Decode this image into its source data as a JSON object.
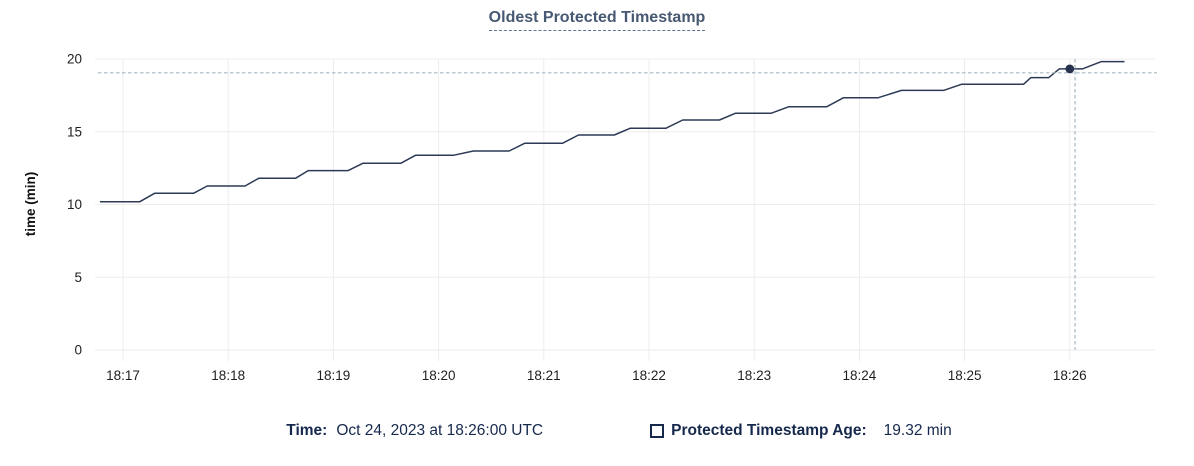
{
  "title": "Oldest Protected Timestamp",
  "legend": {
    "time_label": "Time:",
    "time_value": "Oct 24, 2023 at 18:26:00 UTC",
    "series_label": "Protected Timestamp Age:",
    "series_value": "19.32 min",
    "series_checkbox_checked": false
  },
  "chart_data": {
    "type": "line",
    "title": "Oldest Protected Timestamp",
    "xlabel": "",
    "ylabel": "time (min)",
    "x_ticks": [
      "18:17",
      "18:18",
      "18:19",
      "18:20",
      "18:21",
      "18:22",
      "18:23",
      "18:24",
      "18:25",
      "18:26"
    ],
    "x_unit": "minutes after 18:17",
    "y_ticks": [
      0,
      5,
      10,
      15,
      20
    ],
    "ylim": [
      0,
      20
    ],
    "grid": true,
    "legend_position": "bottom",
    "series": [
      {
        "name": "Protected Timestamp Age",
        "unit": "min",
        "points": [
          [
            -0.22,
            10.19
          ],
          [
            0.16,
            10.19
          ],
          [
            0.3,
            10.77
          ],
          [
            0.67,
            10.77
          ],
          [
            0.8,
            11.27
          ],
          [
            1.16,
            11.27
          ],
          [
            1.29,
            11.8
          ],
          [
            1.64,
            11.8
          ],
          [
            1.76,
            12.33
          ],
          [
            2.14,
            12.33
          ],
          [
            2.28,
            12.83
          ],
          [
            2.64,
            12.83
          ],
          [
            2.78,
            13.38
          ],
          [
            3.14,
            13.38
          ],
          [
            3.33,
            13.68
          ],
          [
            3.67,
            13.68
          ],
          [
            3.82,
            14.21
          ],
          [
            4.18,
            14.21
          ],
          [
            4.33,
            14.78
          ],
          [
            4.67,
            14.78
          ],
          [
            4.82,
            15.24
          ],
          [
            5.16,
            15.24
          ],
          [
            5.32,
            15.81
          ],
          [
            5.67,
            15.81
          ],
          [
            5.82,
            16.27
          ],
          [
            6.16,
            16.27
          ],
          [
            6.33,
            16.72
          ],
          [
            6.69,
            16.72
          ],
          [
            6.85,
            17.34
          ],
          [
            7.18,
            17.34
          ],
          [
            7.4,
            17.84
          ],
          [
            7.8,
            17.84
          ],
          [
            7.97,
            18.26
          ],
          [
            8.56,
            18.26
          ],
          [
            8.63,
            18.72
          ],
          [
            8.8,
            18.72
          ],
          [
            8.9,
            19.32
          ],
          [
            9.12,
            19.32
          ],
          [
            9.3,
            19.82
          ],
          [
            9.52,
            19.82
          ]
        ]
      }
    ],
    "hover": {
      "time": "Oct 24, 2023 at 18:26:00 UTC",
      "value": 19.32,
      "point": [
        9.0,
        19.32
      ],
      "crosshair": [
        9.05,
        19.05
      ]
    },
    "colors": {
      "line": "#2d3a56",
      "dot": "#26324e",
      "grid": "#ededed",
      "crosshair": "#a6b8c4",
      "tick_label": "#1f1f1f",
      "axis_title": "#111111",
      "title_text": "#475872",
      "legend_text": "#16294d"
    }
  }
}
